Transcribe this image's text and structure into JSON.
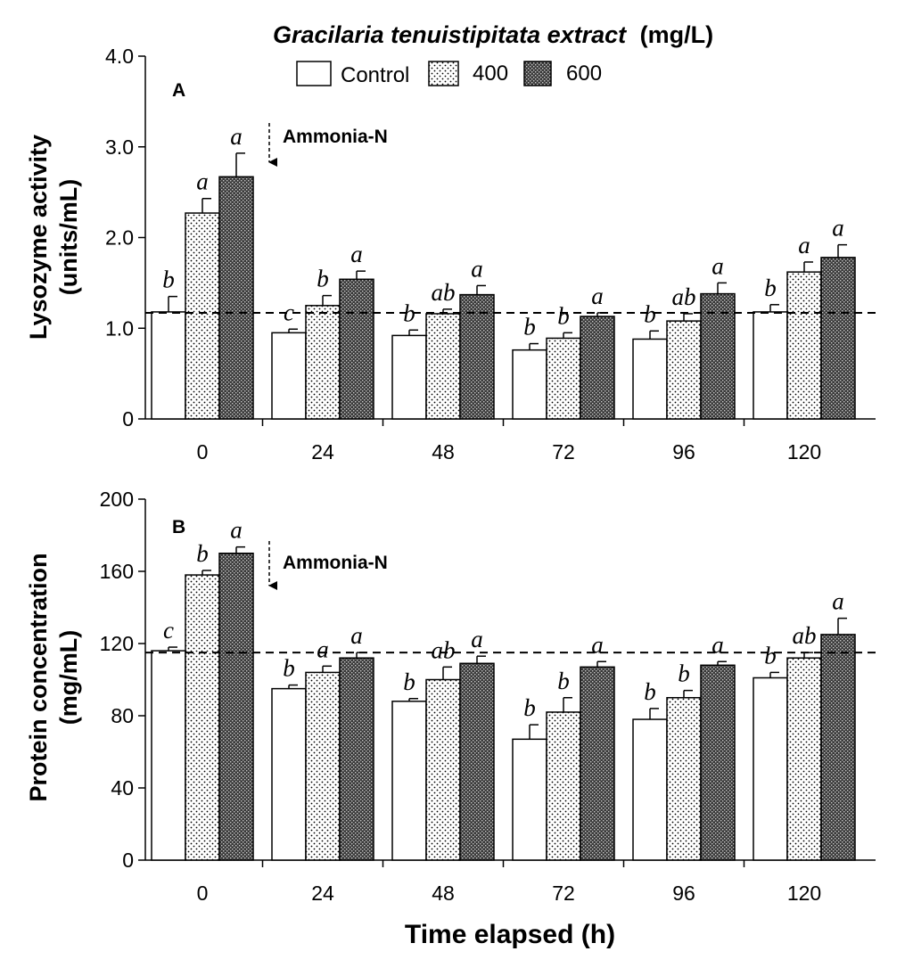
{
  "legend": {
    "title_italic": "Gracilaria tenuistipitata extract",
    "title_unit": "(mg/L)",
    "entries": [
      "Control",
      "400",
      "600"
    ]
  },
  "annotation": "Ammonia-N",
  "xlabel": "Time elapsed (h)",
  "chart_data": [
    {
      "type": "bar",
      "panel": "A",
      "ylabel": [
        "Lysozyme activity",
        "(units/mL)"
      ],
      "ylim": [
        0,
        4.0
      ],
      "yticks": [
        "0",
        "1.0",
        "2.0",
        "3.0",
        "4.0"
      ],
      "ytick_values": [
        0,
        1.0,
        2.0,
        3.0,
        4.0
      ],
      "categories": [
        "0",
        "24",
        "48",
        "72",
        "96",
        "120"
      ],
      "series": [
        {
          "name": "Control",
          "values": [
            1.18,
            0.95,
            0.92,
            0.76,
            0.88,
            1.18
          ],
          "errors": [
            0.17,
            0.04,
            0.06,
            0.07,
            0.09,
            0.08
          ],
          "letters": [
            "b",
            "c",
            "b",
            "b",
            "b",
            "b"
          ]
        },
        {
          "name": "400",
          "values": [
            2.27,
            1.25,
            1.16,
            0.89,
            1.08,
            1.62
          ],
          "errors": [
            0.16,
            0.11,
            0.05,
            0.06,
            0.08,
            0.11
          ],
          "letters": [
            "a",
            "b",
            "ab",
            "b",
            "ab",
            "a"
          ]
        },
        {
          "name": "600",
          "values": [
            2.67,
            1.54,
            1.37,
            1.13,
            1.38,
            1.78
          ],
          "errors": [
            0.26,
            0.09,
            0.1,
            0.04,
            0.12,
            0.14
          ],
          "letters": [
            "a",
            "a",
            "a",
            "a",
            "a",
            "a"
          ]
        }
      ],
      "reference_line": 1.17
    },
    {
      "type": "bar",
      "panel": "B",
      "ylabel": [
        "Protein concentration",
        "(mg/mL)"
      ],
      "ylim": [
        0,
        200
      ],
      "yticks": [
        "0",
        "40",
        "80",
        "120",
        "160",
        "200"
      ],
      "ytick_values": [
        0,
        40,
        80,
        120,
        160,
        200
      ],
      "categories": [
        "0",
        "24",
        "48",
        "72",
        "96",
        "120"
      ],
      "series": [
        {
          "name": "Control",
          "values": [
            116,
            95,
            88,
            67,
            78,
            101
          ],
          "errors": [
            2,
            2,
            1.5,
            8,
            6,
            3
          ],
          "letters": [
            "c",
            "b",
            "b",
            "b",
            "b",
            "b"
          ]
        },
        {
          "name": "400",
          "values": [
            158,
            104,
            100,
            82,
            90,
            112
          ],
          "errors": [
            2.5,
            3.5,
            7,
            8,
            4,
            3
          ],
          "letters": [
            "b",
            "a",
            "ab",
            "b",
            "b",
            "ab"
          ]
        },
        {
          "name": "600",
          "values": [
            170,
            112,
            109,
            107,
            108,
            125
          ],
          "errors": [
            3.5,
            3,
            4,
            3,
            2,
            9
          ],
          "letters": [
            "a",
            "a",
            "a",
            "a",
            "a",
            "a"
          ]
        }
      ],
      "reference_line": 115
    }
  ],
  "colors": {
    "bar_stroke": "#000000",
    "control_fill": "#ffffff",
    "dots": "#000000",
    "dark_fill": "#444444"
  }
}
